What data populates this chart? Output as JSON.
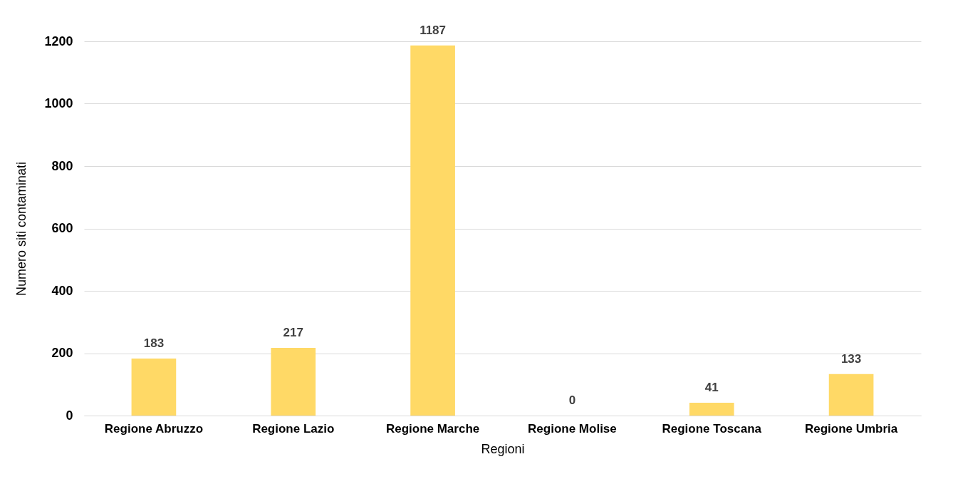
{
  "chart_data": {
    "type": "bar",
    "xlabel": "Regioni",
    "ylabel": "Numero siti contaminati",
    "categories": [
      "Regione Abruzzo",
      "Regione Lazio",
      "Regione Marche",
      "Regione Molise",
      "Regione Toscana",
      "Regione Umbria"
    ],
    "values": [
      183,
      217,
      1187,
      0,
      41,
      133
    ],
    "color": "#ffd966",
    "ylim": [
      0,
      1200
    ],
    "yticks": [
      0,
      200,
      400,
      600,
      800,
      1000,
      1200
    ],
    "grid": "y",
    "data_labels": true
  }
}
